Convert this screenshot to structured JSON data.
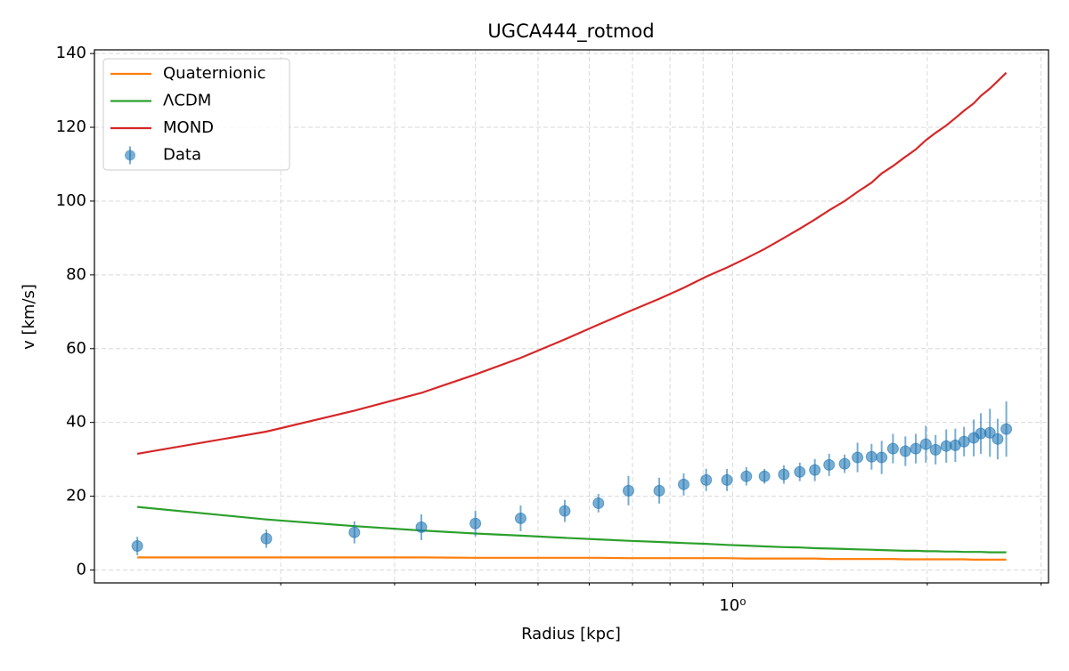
{
  "chart_data": {
    "type": "line",
    "title": "UGCA444_rotmod",
    "x_label": "Radius [kpc]",
    "y_label": "v [km/s]",
    "xscale": "log",
    "grid": true,
    "legend": "upper left",
    "xlim": [
      0.103,
      3.08
    ],
    "ylim": [
      -3.5,
      141
    ],
    "yticks": [
      0,
      20,
      40,
      60,
      80,
      100,
      120,
      140
    ],
    "xticks": [
      {
        "value": 1,
        "label": "10⁰"
      }
    ],
    "xminorticks": [
      0.2,
      0.3,
      0.4,
      0.5,
      0.6,
      0.7,
      0.8,
      0.9,
      2,
      3
    ],
    "x": [
      0.12,
      0.19,
      0.26,
      0.33,
      0.4,
      0.47,
      0.55,
      0.62,
      0.69,
      0.77,
      0.84,
      0.91,
      0.98,
      1.05,
      1.12,
      1.2,
      1.27,
      1.34,
      1.41,
      1.49,
      1.56,
      1.64,
      1.7,
      1.77,
      1.85,
      1.92,
      1.99,
      2.06,
      2.14,
      2.21,
      2.28,
      2.36,
      2.42,
      2.5,
      2.57,
      2.65
    ],
    "series": [
      {
        "name": "Quaternionic",
        "color": "#ff7f0e",
        "style": "line",
        "values": [
          3.4,
          3.4,
          3.4,
          3.4,
          3.3,
          3.3,
          3.3,
          3.3,
          3.2,
          3.2,
          3.2,
          3.2,
          3.2,
          3.1,
          3.1,
          3.1,
          3.1,
          3.1,
          3.0,
          3.0,
          3.0,
          3.0,
          3.0,
          3.0,
          2.9,
          2.9,
          2.9,
          2.9,
          2.9,
          2.9,
          2.9,
          2.8,
          2.8,
          2.8,
          2.8,
          2.8
        ]
      },
      {
        "name": "ΛCDM",
        "color": "#2ca02c",
        "style": "line",
        "values": [
          17.1,
          13.7,
          11.9,
          10.7,
          9.9,
          9.3,
          8.7,
          8.3,
          7.9,
          7.6,
          7.3,
          7.1,
          6.8,
          6.6,
          6.4,
          6.2,
          6.1,
          5.9,
          5.8,
          5.7,
          5.6,
          5.5,
          5.4,
          5.3,
          5.2,
          5.2,
          5.1,
          5.1,
          5.0,
          5.0,
          4.9,
          4.9,
          4.9,
          4.8,
          4.8,
          4.8
        ]
      },
      {
        "name": "MOND",
        "color": "#d62728",
        "style": "line",
        "values": [
          31.5,
          37.5,
          43.2,
          48,
          53,
          57.5,
          62.5,
          66.5,
          70,
          73.5,
          76.5,
          79.5,
          82,
          84.5,
          87,
          90,
          92.5,
          95,
          97.5,
          100,
          102.5,
          105,
          107.5,
          109.5,
          112,
          114,
          116.5,
          118.5,
          120.5,
          122.5,
          124.5,
          126.5,
          128.5,
          130.5,
          132.5,
          134.8
        ]
      },
      {
        "name": "Data",
        "color": "#1f77b4",
        "style": "errorbar",
        "values": [
          6.5,
          8.5,
          10.2,
          11.6,
          12.6,
          14.0,
          16.0,
          18.1,
          21.5,
          21.5,
          23.2,
          24.4,
          24.4,
          25.4,
          25.4,
          25.9,
          26.6,
          27.1,
          28.5,
          28.8,
          30.5,
          30.7,
          30.5,
          32.9,
          32.2,
          32.9,
          34.1,
          32.6,
          33.6,
          33.8,
          34.8,
          35.8,
          37.0,
          37.2,
          35.5,
          38.2
        ],
        "errors": [
          2.5,
          2.5,
          3,
          3.5,
          3.5,
          3.5,
          3,
          2.5,
          4,
          3.5,
          3,
          3,
          3,
          2.5,
          2,
          2.5,
          2.5,
          3,
          3,
          2.5,
          4,
          3.5,
          4.5,
          4,
          4,
          4,
          5,
          4,
          4.5,
          4.5,
          4,
          5,
          5.5,
          6.5,
          5.5,
          7.5
        ]
      }
    ]
  }
}
